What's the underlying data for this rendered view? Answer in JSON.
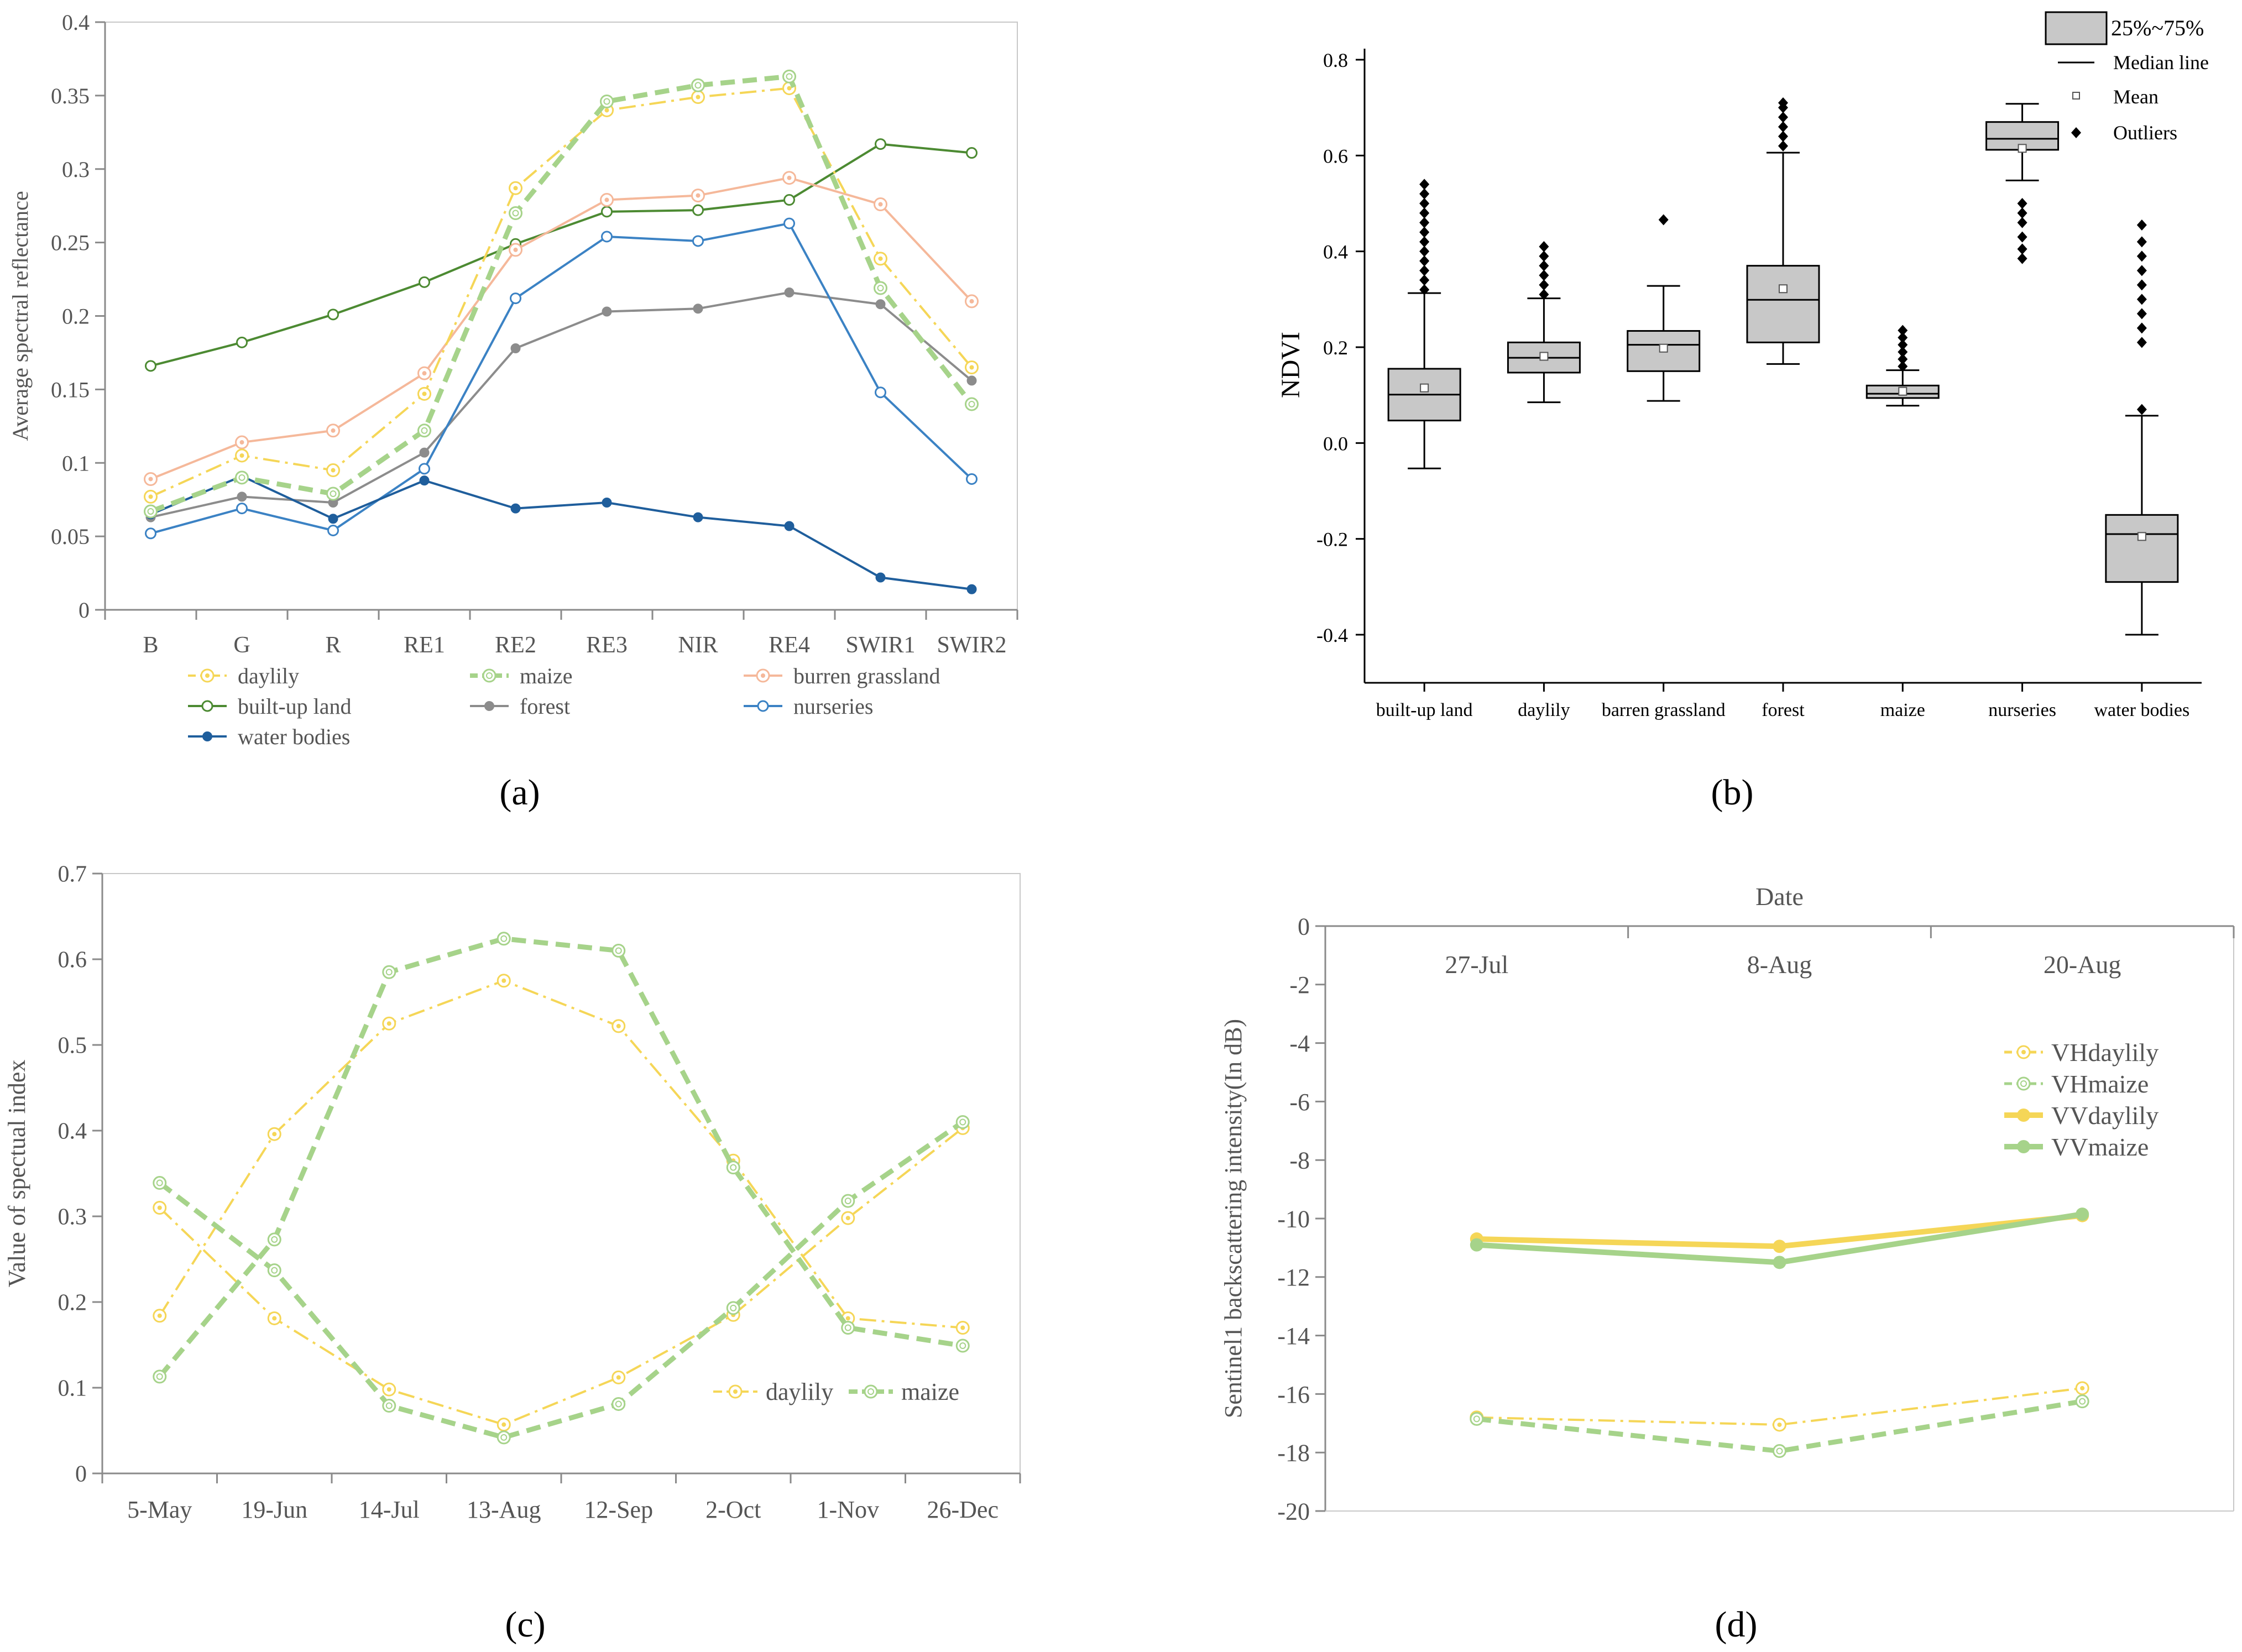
{
  "panels": [
    {
      "caption": "(a)"
    },
    {
      "caption": "(b)"
    },
    {
      "caption": "(c)"
    },
    {
      "caption": "(d)"
    }
  ],
  "chart_data": [
    {
      "type": "line",
      "panel": "(a)",
      "ylabel": "Average spectral reflectance",
      "ylim": [
        0,
        0.4
      ],
      "yticks": [
        0,
        0.05,
        0.1,
        0.15,
        0.2,
        0.25,
        0.3,
        0.35,
        0.4
      ],
      "ytick_labels": [
        "0",
        "0.05",
        "0.1",
        "0.15",
        "0.2",
        "0.25",
        "0.3",
        "0.35",
        "0.4"
      ],
      "categories": [
        "B",
        "G",
        "R",
        "RE1",
        "RE2",
        "RE3",
        "NIR",
        "RE4",
        "SWIR1",
        "SWIR2"
      ],
      "legend": [
        {
          "name": "daylily",
          "color": "#f5d657",
          "style": "dashdot",
          "marker": "open-dot"
        },
        {
          "name": "maize",
          "color": "#a6d38a",
          "style": "dashed",
          "marker": "open-double"
        },
        {
          "name": "burren grassland",
          "color": "#f5b89a",
          "style": "solid",
          "marker": "open-dot"
        },
        {
          "name": "built-up land",
          "color": "#4c8a32",
          "style": "solid",
          "marker": "open"
        },
        {
          "name": "forest",
          "color": "#8c8c8c",
          "style": "solid",
          "marker": "filled"
        },
        {
          "name": "nurseries",
          "color": "#3b82c4",
          "style": "solid",
          "marker": "open"
        },
        {
          "name": "water bodies",
          "color": "#1f5e9c",
          "style": "solid",
          "marker": "filled"
        }
      ],
      "series": [
        {
          "name": "daylily",
          "values": [
            0.077,
            0.105,
            0.095,
            0.147,
            0.287,
            0.34,
            0.349,
            0.355,
            0.239,
            0.165
          ]
        },
        {
          "name": "maize",
          "values": [
            0.067,
            0.09,
            0.079,
            0.122,
            0.27,
            0.346,
            0.357,
            0.363,
            0.219,
            0.14
          ]
        },
        {
          "name": "burren grassland",
          "values": [
            0.089,
            0.114,
            0.122,
            0.161,
            0.245,
            0.279,
            0.282,
            0.294,
            0.276,
            0.21
          ]
        },
        {
          "name": "built-up land",
          "values": [
            0.166,
            0.182,
            0.201,
            0.223,
            0.249,
            0.271,
            0.272,
            0.279,
            0.317,
            0.311
          ]
        },
        {
          "name": "forest",
          "values": [
            0.063,
            0.077,
            0.073,
            0.107,
            0.178,
            0.203,
            0.205,
            0.216,
            0.208,
            0.156
          ]
        },
        {
          "name": "nurseries",
          "values": [
            0.052,
            0.069,
            0.054,
            0.096,
            0.212,
            0.254,
            0.251,
            0.263,
            0.148,
            0.089
          ]
        },
        {
          "name": "water bodies",
          "values": [
            0.065,
            0.091,
            0.062,
            0.088,
            0.069,
            0.073,
            0.063,
            0.057,
            0.022,
            0.014
          ]
        }
      ]
    },
    {
      "type": "box",
      "panel": "(b)",
      "ylabel": "NDVI",
      "ylim": [
        -0.5,
        0.8
      ],
      "yticks": [
        -0.4,
        -0.2,
        0.0,
        0.2,
        0.4,
        0.6,
        0.8
      ],
      "ytick_labels": [
        "-0.4",
        "-0.2",
        "0.0",
        "0.2",
        "0.4",
        "0.6",
        "0.8"
      ],
      "legend": [
        {
          "label": "25%~75%",
          "kind": "box"
        },
        {
          "label": "Median line",
          "kind": "line"
        },
        {
          "label": "Mean",
          "kind": "square"
        },
        {
          "label": "Outliers",
          "kind": "diamond"
        }
      ],
      "box_fill": "#c8c8c8",
      "boxes": [
        {
          "category": "built-up land",
          "whisker_low": -0.053,
          "q1": 0.047,
          "median": 0.101,
          "q3": 0.155,
          "whisker_high": 0.313,
          "mean": 0.115,
          "outliers": [
            0.32,
            0.34,
            0.36,
            0.38,
            0.4,
            0.42,
            0.44,
            0.46,
            0.48,
            0.5,
            0.52,
            0.54
          ]
        },
        {
          "category": "daylily",
          "whisker_low": 0.085,
          "q1": 0.147,
          "median": 0.178,
          "q3": 0.21,
          "whisker_high": 0.302,
          "mean": 0.181,
          "outliers": [
            0.31,
            0.33,
            0.35,
            0.37,
            0.39,
            0.41
          ]
        },
        {
          "category": "barren grassland",
          "whisker_low": 0.088,
          "q1": 0.15,
          "median": 0.205,
          "q3": 0.234,
          "whisker_high": 0.328,
          "mean": 0.198,
          "outliers": [
            0.466
          ]
        },
        {
          "category": "forest",
          "whisker_low": 0.165,
          "q1": 0.21,
          "median": 0.299,
          "q3": 0.37,
          "whisker_high": 0.606,
          "mean": 0.322,
          "outliers": [
            0.62,
            0.64,
            0.66,
            0.68,
            0.7,
            0.71
          ]
        },
        {
          "category": "maize",
          "whisker_low": 0.078,
          "q1": 0.094,
          "median": 0.103,
          "q3": 0.12,
          "whisker_high": 0.152,
          "mean": 0.108,
          "outliers": [
            0.16,
            0.175,
            0.19,
            0.205,
            0.22,
            0.235
          ]
        },
        {
          "category": "nurseries",
          "whisker_low": 0.548,
          "q1": 0.612,
          "median": 0.635,
          "q3": 0.67,
          "whisker_high": 0.708,
          "mean": 0.615,
          "outliers": [
            0.385,
            0.405,
            0.43,
            0.46,
            0.48,
            0.5
          ]
        },
        {
          "category": "water bodies",
          "whisker_low": -0.4,
          "q1": -0.29,
          "median": -0.19,
          "q3": -0.15,
          "whisker_high": 0.057,
          "mean": -0.195,
          "outliers": [
            0.07,
            0.21,
            0.24,
            0.27,
            0.3,
            0.33,
            0.36,
            0.39,
            0.42,
            0.455
          ]
        }
      ]
    },
    {
      "type": "line",
      "panel": "(c)",
      "ylabel": "Value of spectual index",
      "ylim": [
        0,
        0.7
      ],
      "yticks": [
        0,
        0.1,
        0.2,
        0.3,
        0.4,
        0.5,
        0.6,
        0.7
      ],
      "ytick_labels": [
        "0",
        "0.1",
        "0.2",
        "0.3",
        "0.4",
        "0.5",
        "0.6",
        "0.7"
      ],
      "categories": [
        "5-May",
        "19-Jun",
        "14-Jul",
        "13-Aug",
        "12-Sep",
        "2-Oct",
        "1-Nov",
        "26-Dec"
      ],
      "legend": [
        {
          "name": "daylily",
          "color": "#f5d657",
          "style": "dashdot"
        },
        {
          "name": "maize",
          "color": "#a6d38a",
          "style": "dashed"
        }
      ],
      "series": [
        {
          "name": "daylily",
          "values": [
            0.184,
            0.396,
            0.525,
            0.575,
            0.522,
            0.365,
            0.181,
            0.17
          ]
        },
        {
          "name": "daylily",
          "values": [
            0.31,
            0.181,
            0.098,
            0.057,
            0.112,
            0.185,
            0.298,
            0.403
          ]
        },
        {
          "name": "maize",
          "values": [
            0.339,
            0.237,
            0.079,
            0.042,
            0.081,
            0.193,
            0.318,
            0.41
          ]
        },
        {
          "name": "maize",
          "values": [
            0.113,
            0.273,
            0.585,
            0.624,
            0.61,
            0.357,
            0.17,
            0.149
          ]
        }
      ]
    },
    {
      "type": "line",
      "panel": "(d)",
      "title": "Date",
      "ylabel": "Sentinel1 backscattering intensity(In dB)",
      "ylim": [
        -20,
        0
      ],
      "yticks": [
        -20,
        -18,
        -16,
        -14,
        -12,
        -10,
        -8,
        -6,
        -4,
        -2,
        0
      ],
      "ytick_labels": [
        "-20",
        "-18",
        "-16",
        "-14",
        "-12",
        "-10",
        "-8",
        "-6",
        "-4",
        "-2",
        "0"
      ],
      "categories": [
        "27-Jul",
        "8-Aug",
        "20-Aug"
      ],
      "legend": [
        {
          "name": "VHdaylily",
          "color": "#f5d657",
          "style": "dashdot"
        },
        {
          "name": "VHmaize",
          "color": "#a6d38a",
          "style": "dashed"
        },
        {
          "name": "VVdaylily",
          "color": "#f5d657",
          "style": "solid"
        },
        {
          "name": "VVmaize",
          "color": "#a6d38a",
          "style": "solid"
        }
      ],
      "series": [
        {
          "name": "VHdaylily",
          "values": [
            -16.8,
            -17.05,
            -15.8
          ]
        },
        {
          "name": "VHmaize",
          "values": [
            -16.85,
            -17.95,
            -16.25
          ]
        },
        {
          "name": "VVdaylily",
          "values": [
            -10.7,
            -10.95,
            -9.9
          ]
        },
        {
          "name": "VVmaize",
          "values": [
            -10.9,
            -11.5,
            -9.85
          ]
        }
      ]
    }
  ]
}
